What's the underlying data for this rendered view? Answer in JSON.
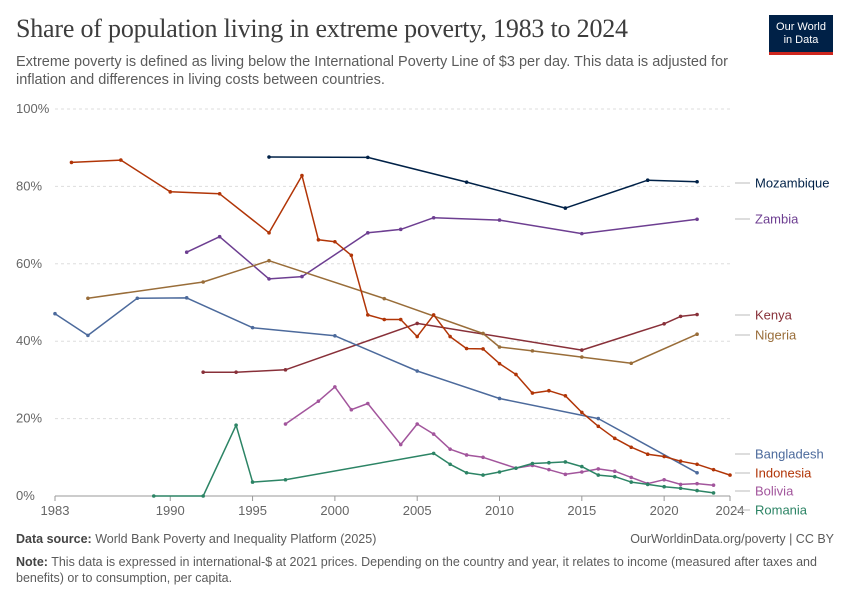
{
  "header": {
    "title": "Share of population living in extreme poverty, 1983 to 2024",
    "subtitle": "Extreme poverty is defined as living below the International Poverty Line of $3 per day. This data is adjusted for inflation and differences in living costs between countries.",
    "logo_line1": "Our World",
    "logo_line2": "in Data",
    "logo_bg": "#002147",
    "logo_accent": "#ce261e"
  },
  "footer": {
    "source_label": "Data source:",
    "source_text": "World Bank Poverty and Inequality Platform (2025)",
    "url_text": "OurWorldinData.org/poverty | CC BY",
    "note_label": "Note:",
    "note_text": "This data is expressed in international-$ at 2021 prices. Depending on the country and year, it relates to income (measured after taxes and benefits) or to consumption, per capita."
  },
  "chart_data": {
    "type": "line",
    "title": "Share of population living in extreme poverty, 1983 to 2024",
    "xlim": [
      1983,
      2024
    ],
    "ylim": [
      0,
      100
    ],
    "x_ticks": [
      1983,
      1990,
      1995,
      2000,
      2005,
      2010,
      2015,
      2020,
      2024
    ],
    "x_tick_labels": [
      "1983",
      "1990",
      "1995",
      "2000",
      "2005",
      "2010",
      "2015",
      "2020",
      "2024"
    ],
    "y_ticks": [
      0,
      20,
      40,
      60,
      80,
      100
    ],
    "y_tick_labels": [
      "0%",
      "20%",
      "40%",
      "60%",
      "80%",
      "100%"
    ],
    "grid": "horizontal dashed",
    "legend": "right, labels at line ends",
    "series": [
      {
        "name": "Mozambique",
        "color": "#002147",
        "points": [
          [
            1996,
            87.6
          ],
          [
            2002,
            87.5
          ],
          [
            2008,
            81.1
          ],
          [
            2014,
            74.4
          ],
          [
            2019,
            81.6
          ],
          [
            2022,
            81.2
          ]
        ]
      },
      {
        "name": "Zambia",
        "color": "#6d3e91",
        "points": [
          [
            1991,
            63.0
          ],
          [
            1993,
            67.0
          ],
          [
            1996,
            56.1
          ],
          [
            1998,
            56.7
          ],
          [
            2002,
            68.0
          ],
          [
            2004,
            68.9
          ],
          [
            2006,
            71.9
          ],
          [
            2010,
            71.3
          ],
          [
            2015,
            67.8
          ],
          [
            2022,
            71.5
          ]
        ]
      },
      {
        "name": "Kenya",
        "color": "#883039",
        "points": [
          [
            1992,
            32.0
          ],
          [
            1994,
            32.0
          ],
          [
            1997,
            32.6
          ],
          [
            2005,
            44.6
          ],
          [
            2015,
            37.7
          ],
          [
            2020,
            44.5
          ],
          [
            2021,
            46.4
          ],
          [
            2022,
            46.9
          ]
        ]
      },
      {
        "name": "Nigeria",
        "color": "#996d39",
        "points": [
          [
            1985,
            51.1
          ],
          [
            1992,
            55.3
          ],
          [
            1996,
            60.8
          ],
          [
            2003,
            51.0
          ],
          [
            2009,
            42.0
          ],
          [
            2010,
            38.5
          ],
          [
            2012,
            37.5
          ],
          [
            2015,
            35.9
          ],
          [
            2018,
            34.3
          ],
          [
            2022,
            41.8
          ]
        ]
      },
      {
        "name": "Bangladesh",
        "color": "#4c6a9c",
        "points": [
          [
            1983,
            47.1
          ],
          [
            1985,
            41.5
          ],
          [
            1988,
            51.1
          ],
          [
            1991,
            51.2
          ],
          [
            1995,
            43.5
          ],
          [
            2000,
            41.4
          ],
          [
            2005,
            32.3
          ],
          [
            2010,
            25.2
          ],
          [
            2016,
            20.0
          ],
          [
            2022,
            6.0
          ]
        ]
      },
      {
        "name": "Indonesia",
        "color": "#b13507",
        "points": [
          [
            1984,
            86.2
          ],
          [
            1987,
            86.8
          ],
          [
            1990,
            78.6
          ],
          [
            1993,
            78.1
          ],
          [
            1996,
            68.0
          ],
          [
            1998,
            82.8
          ],
          [
            1999,
            66.2
          ],
          [
            2000,
            65.7
          ],
          [
            2001,
            62.2
          ],
          [
            2002,
            46.8
          ],
          [
            2003,
            45.6
          ],
          [
            2004,
            45.6
          ],
          [
            2005,
            41.2
          ],
          [
            2006,
            46.8
          ],
          [
            2007,
            41.2
          ],
          [
            2008,
            38.1
          ],
          [
            2009,
            38.0
          ],
          [
            2010,
            34.2
          ],
          [
            2011,
            31.4
          ],
          [
            2012,
            26.6
          ],
          [
            2013,
            27.2
          ],
          [
            2014,
            25.9
          ],
          [
            2015,
            21.6
          ],
          [
            2016,
            18.0
          ],
          [
            2017,
            14.9
          ],
          [
            2018,
            12.6
          ],
          [
            2019,
            10.8
          ],
          [
            2020,
            10.2
          ],
          [
            2021,
            9.0
          ],
          [
            2022,
            8.2
          ],
          [
            2023,
            6.8
          ],
          [
            2024,
            5.4
          ]
        ]
      },
      {
        "name": "Bolivia",
        "color": "#a2559c",
        "points": [
          [
            1997,
            18.6
          ],
          [
            1999,
            24.5
          ],
          [
            2000,
            28.2
          ],
          [
            2001,
            22.3
          ],
          [
            2002,
            23.9
          ],
          [
            2004,
            13.3
          ],
          [
            2005,
            18.6
          ],
          [
            2006,
            16.0
          ],
          [
            2007,
            12.1
          ],
          [
            2008,
            10.6
          ],
          [
            2009,
            10.0
          ],
          [
            2011,
            7.2
          ],
          [
            2012,
            7.9
          ],
          [
            2013,
            6.8
          ],
          [
            2014,
            5.6
          ],
          [
            2015,
            6.2
          ],
          [
            2016,
            7.0
          ],
          [
            2017,
            6.4
          ],
          [
            2018,
            4.8
          ],
          [
            2019,
            3.2
          ],
          [
            2020,
            4.2
          ],
          [
            2021,
            3.0
          ],
          [
            2022,
            3.2
          ],
          [
            2023,
            2.8
          ]
        ]
      },
      {
        "name": "Romania",
        "color": "#2c8465",
        "points": [
          [
            1989,
            0.0
          ],
          [
            1992,
            0.0
          ],
          [
            1994,
            18.3
          ],
          [
            1995,
            3.6
          ],
          [
            1997,
            4.2
          ],
          [
            2006,
            11.0
          ],
          [
            2007,
            8.2
          ],
          [
            2008,
            6.0
          ],
          [
            2009,
            5.4
          ],
          [
            2010,
            6.2
          ],
          [
            2011,
            7.2
          ],
          [
            2012,
            8.4
          ],
          [
            2013,
            8.6
          ],
          [
            2014,
            8.8
          ],
          [
            2015,
            7.6
          ],
          [
            2016,
            5.4
          ],
          [
            2017,
            5.0
          ],
          [
            2018,
            3.6
          ],
          [
            2019,
            3.0
          ],
          [
            2020,
            2.4
          ],
          [
            2021,
            2.0
          ],
          [
            2022,
            1.4
          ],
          [
            2023,
            0.8
          ]
        ]
      }
    ]
  }
}
